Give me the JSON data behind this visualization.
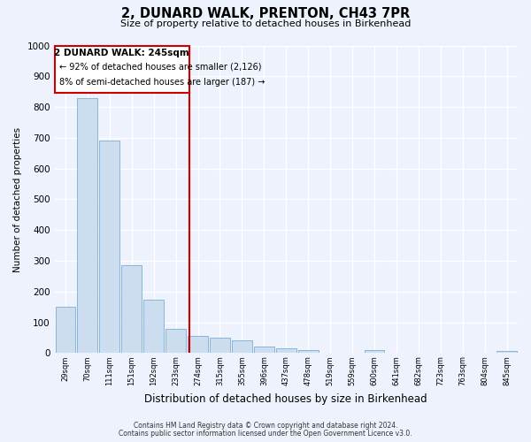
{
  "title": "2, DUNARD WALK, PRENTON, CH43 7PR",
  "subtitle": "Size of property relative to detached houses in Birkenhead",
  "xlabel": "Distribution of detached houses by size in Birkenhead",
  "ylabel": "Number of detached properties",
  "bin_labels": [
    "29sqm",
    "70sqm",
    "111sqm",
    "151sqm",
    "192sqm",
    "233sqm",
    "274sqm",
    "315sqm",
    "355sqm",
    "396sqm",
    "437sqm",
    "478sqm",
    "519sqm",
    "559sqm",
    "600sqm",
    "641sqm",
    "682sqm",
    "723sqm",
    "763sqm",
    "804sqm",
    "845sqm"
  ],
  "bar_values": [
    150,
    828,
    690,
    285,
    175,
    80,
    57,
    50,
    42,
    22,
    15,
    10,
    0,
    0,
    10,
    0,
    0,
    0,
    0,
    0,
    8
  ],
  "bar_color": "#ccddf0",
  "bar_edgecolor": "#7aadd4",
  "vline_x": 5.6,
  "vline_color": "#cc0000",
  "annotation_title": "2 DUNARD WALK: 245sqm",
  "annotation_line1": "← 92% of detached houses are smaller (2,126)",
  "annotation_line2": "8% of semi-detached houses are larger (187) →",
  "annotation_box_color": "#cc0000",
  "ylim": [
    0,
    1000
  ],
  "yticks": [
    0,
    100,
    200,
    300,
    400,
    500,
    600,
    700,
    800,
    900,
    1000
  ],
  "footer1": "Contains HM Land Registry data © Crown copyright and database right 2024.",
  "footer2": "Contains public sector information licensed under the Open Government Licence v3.0.",
  "bg_color": "#eef2fc",
  "grid_color": "#ffffff"
}
